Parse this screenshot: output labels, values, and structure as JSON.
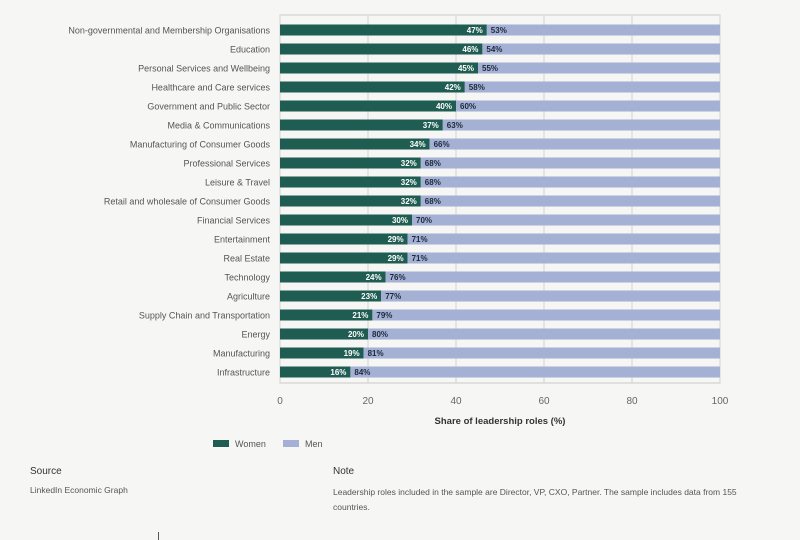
{
  "chart_data": {
    "type": "bar",
    "orientation": "horizontal",
    "stacked": true,
    "categories": [
      "Non-governmental and Membership Organisations",
      "Education",
      "Personal Services and Wellbeing",
      "Healthcare and Care services",
      "Government and Public Sector",
      "Media & Communications",
      "Manufacturing of Consumer Goods",
      "Professional Services",
      "Leisure & Travel",
      "Retail and wholesale of Consumer Goods",
      "Financial Services",
      "Entertainment",
      "Real Estate",
      "Technology",
      "Agriculture",
      "Supply Chain and Transportation",
      "Energy",
      "Manufacturing",
      "Infrastructure"
    ],
    "series": [
      {
        "name": "Women",
        "color": "#1f5c51",
        "values": [
          47,
          46,
          45,
          42,
          40,
          37,
          34,
          32,
          32,
          32,
          30,
          29,
          29,
          24,
          23,
          21,
          20,
          19,
          16
        ],
        "labels": [
          "47%",
          "46%",
          "45%",
          "42%",
          "40%",
          "37%",
          "34%",
          "32%",
          "32%",
          "32%",
          "30%",
          "29%",
          "29%",
          "24%",
          "23%",
          "21%",
          "20%",
          "19%",
          "16%"
        ]
      },
      {
        "name": "Men",
        "color": "#a4b0d4",
        "values": [
          53,
          54,
          55,
          58,
          60,
          63,
          66,
          68,
          68,
          68,
          70,
          71,
          71,
          76,
          77,
          79,
          80,
          81,
          84
        ],
        "labels": [
          "53%",
          "54%",
          "55%",
          "58%",
          "60%",
          "63%",
          "66%",
          "68%",
          "68%",
          "68%",
          "70%",
          "71%",
          "71%",
          "76%",
          "77%",
          "79%",
          "80%",
          "81%",
          "84%"
        ]
      }
    ],
    "xlabel": "Share of leadership roles (%)",
    "xlim": [
      0,
      100
    ],
    "xticks": [
      0,
      20,
      40,
      60,
      80,
      100
    ],
    "xtick_labels": [
      "0",
      "20",
      "40",
      "60",
      "80",
      "100"
    ],
    "grid": true,
    "legend_position": "bottom-left"
  },
  "footer": {
    "source_title": "Source",
    "source_text": "LinkedIn Economic Graph",
    "note_title": "Note",
    "note_text": "Leadership roles included in the sample are Director, VP, CXO, Partner. The sample includes data from 155 countries."
  }
}
